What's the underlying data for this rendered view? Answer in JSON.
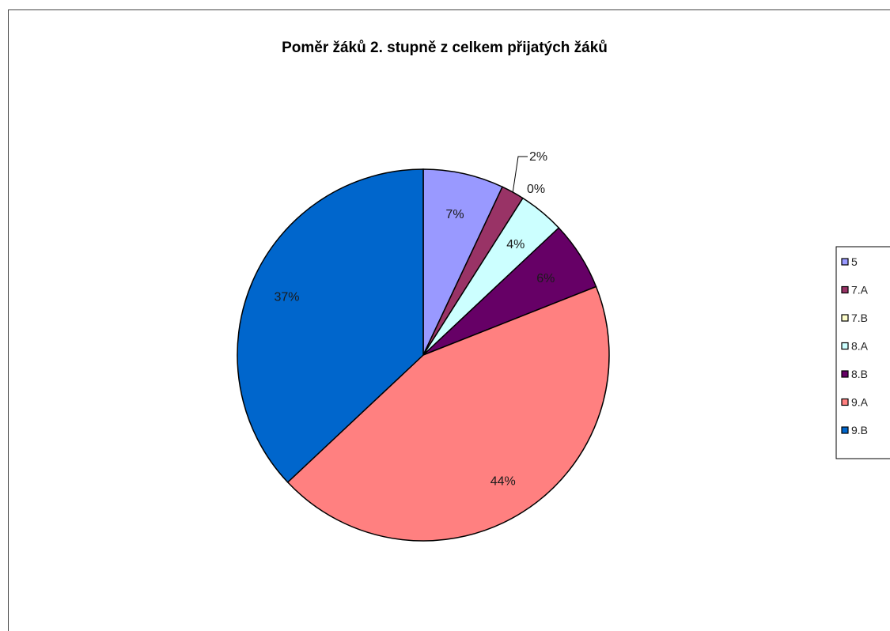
{
  "chart_data": {
    "type": "pie",
    "title": "Poměr žáků 2. stupně z celkem přijatých žáků",
    "categories": [
      "5",
      "7.A",
      "7.B",
      "8.A",
      "8.B",
      "9.A",
      "9.B"
    ],
    "values": [
      7,
      2,
      0,
      4,
      6,
      44,
      37
    ],
    "labels": [
      "7%",
      "2%",
      "0%",
      "4%",
      "6%",
      "44%",
      "37%"
    ],
    "colors": [
      "#9999ff",
      "#993366",
      "#ffffcc",
      "#ccffff",
      "#660066",
      "#ff8080",
      "#0066cc"
    ],
    "legend_position": "right",
    "start_angle": "12 o'clock",
    "direction": "clockwise"
  }
}
